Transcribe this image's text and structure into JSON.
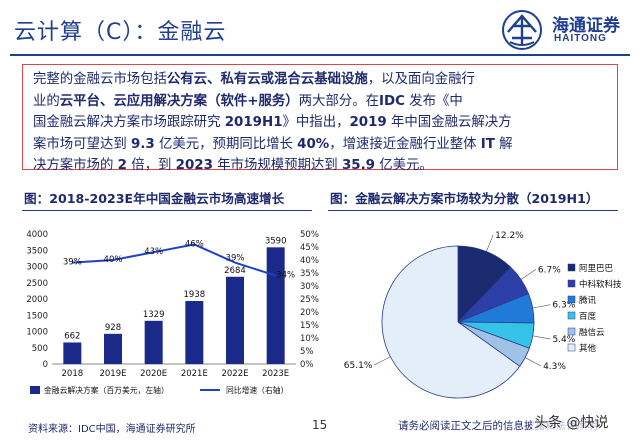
{
  "header": {
    "title": "云计算（C）：金融云",
    "logo_cn": "海通证券",
    "logo_en": "HAITONG"
  },
  "summary": {
    "line1_parts": [
      "完整的金融云市场包括",
      "公有云、私有云或混合云基础设施",
      "，以及面向金融行"
    ],
    "line2_parts": [
      "业的",
      "云平台、云应用解决方案（软件+服务）",
      "两大部分。在",
      "IDC",
      " 发布《中"
    ],
    "line3_parts": [
      "国金融云解决方案市场跟踪研究 ",
      "2019H1",
      "》中指出，",
      "2019",
      " 年中国金融云解决方"
    ],
    "line4_parts": [
      "案市场可望达到 ",
      "9.3",
      " 亿美元，预期同比增长 ",
      "40%",
      "，增速接近金融行业整体 ",
      "IT",
      " 解"
    ],
    "line5_parts": [
      "决方案市场的 ",
      "2",
      " 倍，到 ",
      "2023",
      " 年市场规模预期达到 ",
      "35.9",
      " 亿美元。"
    ]
  },
  "left_figure": {
    "caption": "图：2018-2023E年中国金融云市场高速增长"
  },
  "right_figure": {
    "caption": "图：金融云解决方案市场较为分散（2019H1）"
  },
  "chart_data": [
    {
      "type": "bar",
      "categories": [
        "2018",
        "2019E",
        "2020E",
        "2021E",
        "2022E",
        "2023E"
      ],
      "series": [
        {
          "name": "金融云解决方案（百万美元，左轴）",
          "values": [
            662,
            928,
            1329,
            1938,
            2684,
            3590
          ],
          "color": "#1a2a8a"
        },
        {
          "name": "同比增速（右轴）",
          "type": "line",
          "values": [
            39,
            40,
            43,
            46,
            39,
            34
          ],
          "labels": [
            "39%",
            "40%",
            "43%",
            "46%",
            "39%",
            "34%"
          ],
          "color": "#2040c8"
        }
      ],
      "ylim": [
        0,
        4000
      ],
      "yticks": [
        "0",
        "500",
        "1000",
        "1500",
        "2000",
        "2500",
        "3000",
        "3500",
        "4000"
      ],
      "y2lim": [
        0,
        50
      ],
      "y2ticks": [
        "0%",
        "5%",
        "10%",
        "15%",
        "20%",
        "25%",
        "30%",
        "35%",
        "40%",
        "45%",
        "50%"
      ],
      "legend_position": "bottom"
    },
    {
      "type": "pie",
      "slices": [
        {
          "name": "阿里巴巴",
          "value": 12.2,
          "label": "12.2%",
          "color": "#1a2a6e"
        },
        {
          "name": "中科软科技",
          "value": 6.7,
          "label": "6.7%",
          "color": "#2c3fa8"
        },
        {
          "name": "腾讯",
          "value": 6.3,
          "label": "6.3%",
          "color": "#1f7ad8"
        },
        {
          "name": "百度",
          "value": 5.4,
          "label": "5.4%",
          "color": "#35c4e8"
        },
        {
          "name": "融信云",
          "value": 4.3,
          "label": "4.3%",
          "color": "#9fc3e6"
        },
        {
          "name": "其他",
          "value": 65.1,
          "label": "65.1%",
          "color": "#e4eef8"
        }
      ],
      "legend_position": "right"
    }
  ],
  "footer": {
    "source": "资料来源：IDC中国，海通证券研究所",
    "page": "15",
    "note": "请务必阅读正文之后的信息披露和法律声明",
    "watermark": "头条 @快说"
  }
}
